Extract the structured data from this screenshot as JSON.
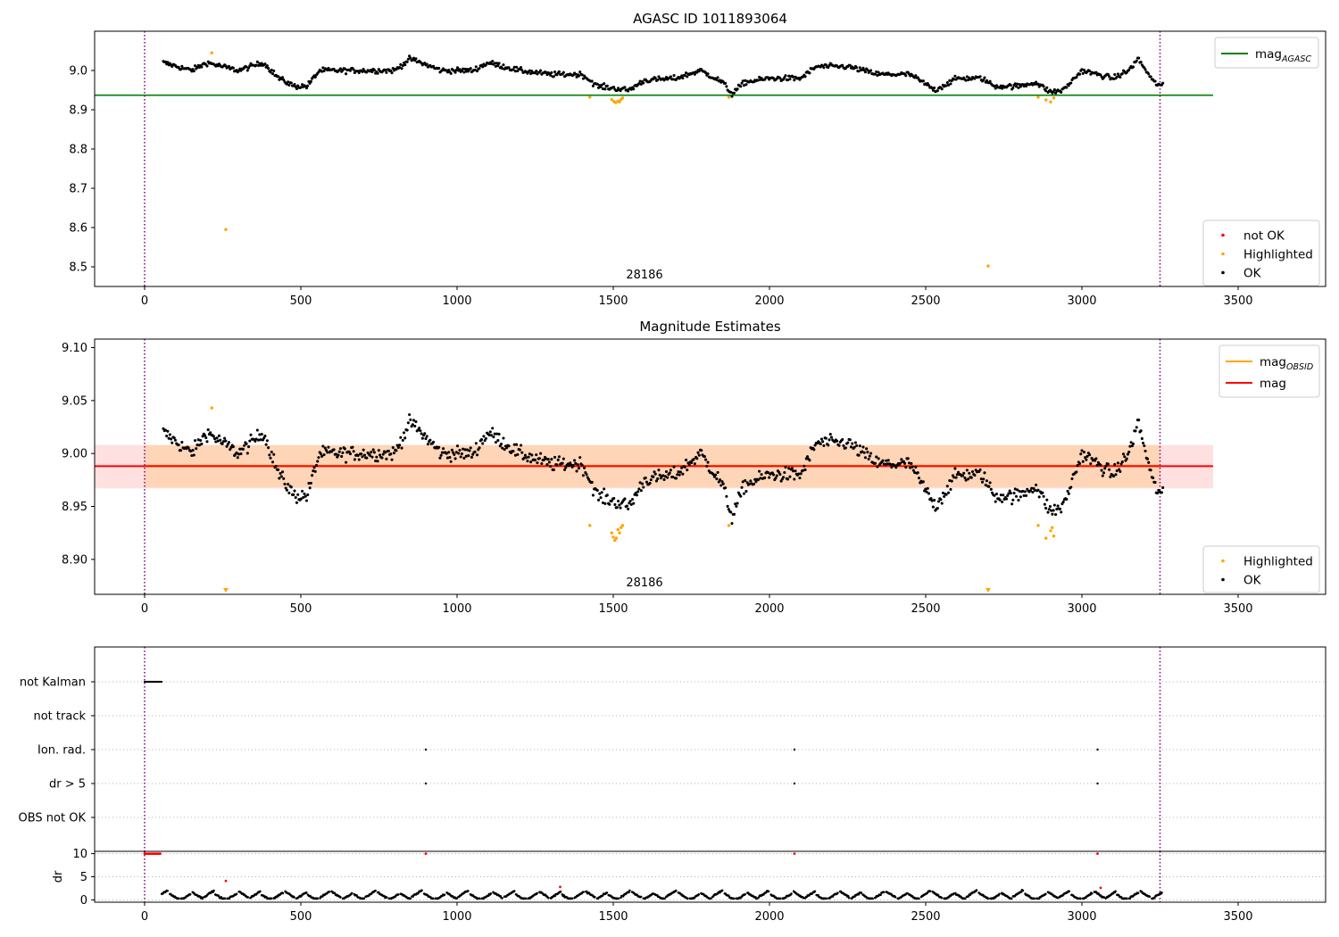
{
  "colors": {
    "ok": "#000000",
    "highlighted": "#ffa500",
    "not_ok": "#ff0000",
    "agasc_line": "#008000",
    "obsid_line": "#ffa500",
    "mag_line": "#ff0000",
    "band_red": "#ff0000",
    "band_orange": "#ffa500",
    "marker_line": "#800080",
    "grid": "#b0b0b0"
  },
  "chart_data": [
    {
      "type": "scatter",
      "title": "AGASC ID 1011893064",
      "annotation": "28186",
      "xlim": [
        -160,
        3780
      ],
      "ylim": [
        8.45,
        9.1
      ],
      "xticks": [
        0,
        500,
        1000,
        1500,
        2000,
        2500,
        3000,
        3500
      ],
      "yticks": [
        8.5,
        8.6,
        8.7,
        8.8,
        8.9,
        9.0
      ],
      "ytick_labels": [
        "8.5",
        "8.6",
        "8.7",
        "8.8",
        "8.9",
        "9.0"
      ],
      "vlines": [
        0,
        3250
      ],
      "hlines": [
        {
          "name": "mag_AGASC",
          "y": 8.937,
          "x": [
            -160,
            3420
          ],
          "color": "#008000"
        }
      ],
      "legends": [
        {
          "placement": "upper right",
          "items": [
            {
              "label": "mag",
              "sub": "AGASC",
              "kind": "line",
              "color": "#008000"
            }
          ]
        },
        {
          "placement": "lower right",
          "items": [
            {
              "label": "not OK",
              "kind": "dot",
              "color": "#ff0000"
            },
            {
              "label": "Highlighted",
              "kind": "dot",
              "color": "#ffa500"
            },
            {
              "label": "OK",
              "kind": "dot",
              "color": "#000000"
            }
          ]
        }
      ],
      "series": [
        {
          "name": "OK",
          "color": "#000000",
          "x_range": [
            60,
            3260
          ],
          "step": 3.5,
          "value_profile": [
            [
              60,
              9.02
            ],
            [
              150,
              9.0
            ],
            [
              200,
              9.02
            ],
            [
              300,
              9.0
            ],
            [
              380,
              9.02
            ],
            [
              430,
              8.98
            ],
            [
              480,
              8.96
            ],
            [
              520,
              8.96
            ],
            [
              560,
              9.0
            ],
            [
              700,
              9.0
            ],
            [
              800,
              9.0
            ],
            [
              850,
              9.03
            ],
            [
              950,
              9.0
            ],
            [
              1050,
              9.0
            ],
            [
              1100,
              9.02
            ],
            [
              1200,
              9.0
            ],
            [
              1300,
              8.99
            ],
            [
              1400,
              8.99
            ],
            [
              1450,
              8.96
            ],
            [
              1500,
              8.955
            ],
            [
              1550,
              8.95
            ],
            [
              1600,
              8.975
            ],
            [
              1700,
              8.98
            ],
            [
              1780,
              9.0
            ],
            [
              1850,
              8.97
            ],
            [
              1880,
              8.94
            ],
            [
              1920,
              8.97
            ],
            [
              2000,
              8.98
            ],
            [
              2100,
              8.98
            ],
            [
              2150,
              9.01
            ],
            [
              2250,
              9.01
            ],
            [
              2350,
              8.99
            ],
            [
              2450,
              8.99
            ],
            [
              2530,
              8.95
            ],
            [
              2600,
              8.98
            ],
            [
              2680,
              8.98
            ],
            [
              2720,
              8.96
            ],
            [
              2800,
              8.96
            ],
            [
              2850,
              8.97
            ],
            [
              2900,
              8.945
            ],
            [
              2940,
              8.95
            ],
            [
              3000,
              9.0
            ],
            [
              3100,
              8.98
            ],
            [
              3150,
              9.0
            ],
            [
              3180,
              9.03
            ],
            [
              3230,
              8.97
            ],
            [
              3260,
              8.96
            ]
          ],
          "noise": 0.012
        },
        {
          "name": "Highlighted",
          "color": "#ffa500",
          "points": [
            [
              215,
              9.045
            ],
            [
              260,
              8.595
            ],
            [
              1425,
              8.932
            ],
            [
              1495,
              8.926
            ],
            [
              1502,
              8.921
            ],
            [
              1508,
              8.918
            ],
            [
              1515,
              8.922
            ],
            [
              1520,
              8.92
            ],
            [
              1525,
              8.926
            ],
            [
              1530,
              8.93
            ],
            [
              1870,
              8.932
            ],
            [
              2700,
              8.502
            ],
            [
              2860,
              8.932
            ],
            [
              2885,
              8.925
            ],
            [
              2900,
              8.92
            ],
            [
              2910,
              8.93
            ]
          ]
        }
      ]
    },
    {
      "type": "scatter",
      "title": "Magnitude Estimates",
      "annotation": "28186",
      "xlim": [
        -160,
        3780
      ],
      "ylim": [
        8.867,
        9.108
      ],
      "xticks": [
        0,
        500,
        1000,
        1500,
        2000,
        2500,
        3000,
        3500
      ],
      "yticks": [
        8.9,
        8.95,
        9.0,
        9.05,
        9.1
      ],
      "ytick_labels": [
        "8.90",
        "8.95",
        "9.00",
        "9.05",
        "9.10"
      ],
      "vlines": [
        0,
        3250
      ],
      "lines": [
        {
          "name": "mag_OBSID",
          "y": 8.9885,
          "x": [
            0,
            3250
          ],
          "color": "#ffa500"
        },
        {
          "name": "mag",
          "y": 8.988,
          "x": [
            -160,
            3420
          ],
          "color": "#ff0000"
        }
      ],
      "bands": [
        {
          "name": "mag",
          "y": [
            8.967,
            9.008
          ],
          "x": [
            -160,
            3420
          ],
          "color": "#ff0000",
          "alpha": 0.12
        },
        {
          "name": "mag_OBSID",
          "y": [
            8.968,
            9.008
          ],
          "x": [
            0,
            3250
          ],
          "color": "#ffa500",
          "alpha": 0.18
        }
      ],
      "legends": [
        {
          "placement": "upper right",
          "items": [
            {
              "label": "mag",
              "sub": "OBSID",
              "kind": "line",
              "color": "#ffa500"
            },
            {
              "label": "mag",
              "kind": "line",
              "color": "#ff0000"
            }
          ]
        },
        {
          "placement": "lower right",
          "items": [
            {
              "label": "Highlighted",
              "kind": "dot",
              "color": "#ffa500"
            },
            {
              "label": "OK",
              "kind": "dot",
              "color": "#000000"
            }
          ]
        }
      ],
      "series": [
        {
          "name": "OK",
          "color": "#000000",
          "x_range": [
            60,
            3260
          ],
          "step": 3.5,
          "source": "same as panel 1",
          "noise": 0.012
        },
        {
          "name": "Highlighted",
          "color": "#ffa500",
          "points": [
            [
              215,
              9.043
            ],
            [
              1425,
              8.932
            ],
            [
              1495,
              8.925
            ],
            [
              1500,
              8.921
            ],
            [
              1505,
              8.918
            ],
            [
              1510,
              8.92
            ],
            [
              1515,
              8.928
            ],
            [
              1520,
              8.925
            ],
            [
              1525,
              8.93
            ],
            [
              1530,
              8.932
            ],
            [
              1870,
              8.932
            ],
            [
              2860,
              8.932
            ],
            [
              2885,
              8.92
            ],
            [
              2900,
              8.927
            ],
            [
              2905,
              8.93
            ],
            [
              2910,
              8.922
            ]
          ]
        },
        {
          "name": "Highlighted (off-scale)",
          "color": "#ffa500",
          "marker": "triangle-down",
          "points": [
            [
              260,
              8.87
            ],
            [
              2700,
              8.87
            ]
          ]
        }
      ]
    },
    {
      "type": "scatter",
      "xlim": [
        -160,
        3780
      ],
      "categories": [
        "not Kalman",
        "not track",
        "Ion. rad.",
        "dr > 5",
        "OBS not OK"
      ],
      "vlines": [
        0,
        3250
      ],
      "flags": [
        {
          "category": "not Kalman",
          "x_range": [
            0,
            55
          ]
        },
        {
          "category": "Ion. rad.",
          "x": [
            900,
            2080,
            3050
          ]
        },
        {
          "category": "dr > 5",
          "x": [
            900,
            2080,
            3050
          ]
        }
      ]
    },
    {
      "type": "scatter",
      "ylabel": "dr",
      "xlim": [
        -160,
        3780
      ],
      "ylim": [
        -0.5,
        10.5
      ],
      "yticks": [
        0,
        5,
        10
      ],
      "ytick_labels": [
        "0",
        "5",
        "10"
      ],
      "xticks": [
        0,
        500,
        1000,
        1500,
        2000,
        2500,
        3000,
        3500
      ],
      "vlines": [
        0,
        3250
      ],
      "series": [
        {
          "name": "OK",
          "color": "#000000",
          "x_range": [
            55,
            3260
          ],
          "typical": [
            0.5,
            2.6
          ]
        },
        {
          "name": "not OK",
          "color": "#ff0000",
          "points": [
            [
              0,
              10
            ],
            [
              5,
              10
            ],
            [
              10,
              10
            ],
            [
              15,
              10
            ],
            [
              20,
              10
            ],
            [
              25,
              10
            ],
            [
              30,
              10
            ],
            [
              35,
              10
            ],
            [
              40,
              10
            ],
            [
              45,
              10
            ],
            [
              50,
              10
            ],
            [
              260,
              4.1
            ],
            [
              900,
              10
            ],
            [
              1330,
              2.8
            ],
            [
              2080,
              10
            ],
            [
              3050,
              10
            ],
            [
              3060,
              2.6
            ]
          ]
        }
      ]
    }
  ]
}
